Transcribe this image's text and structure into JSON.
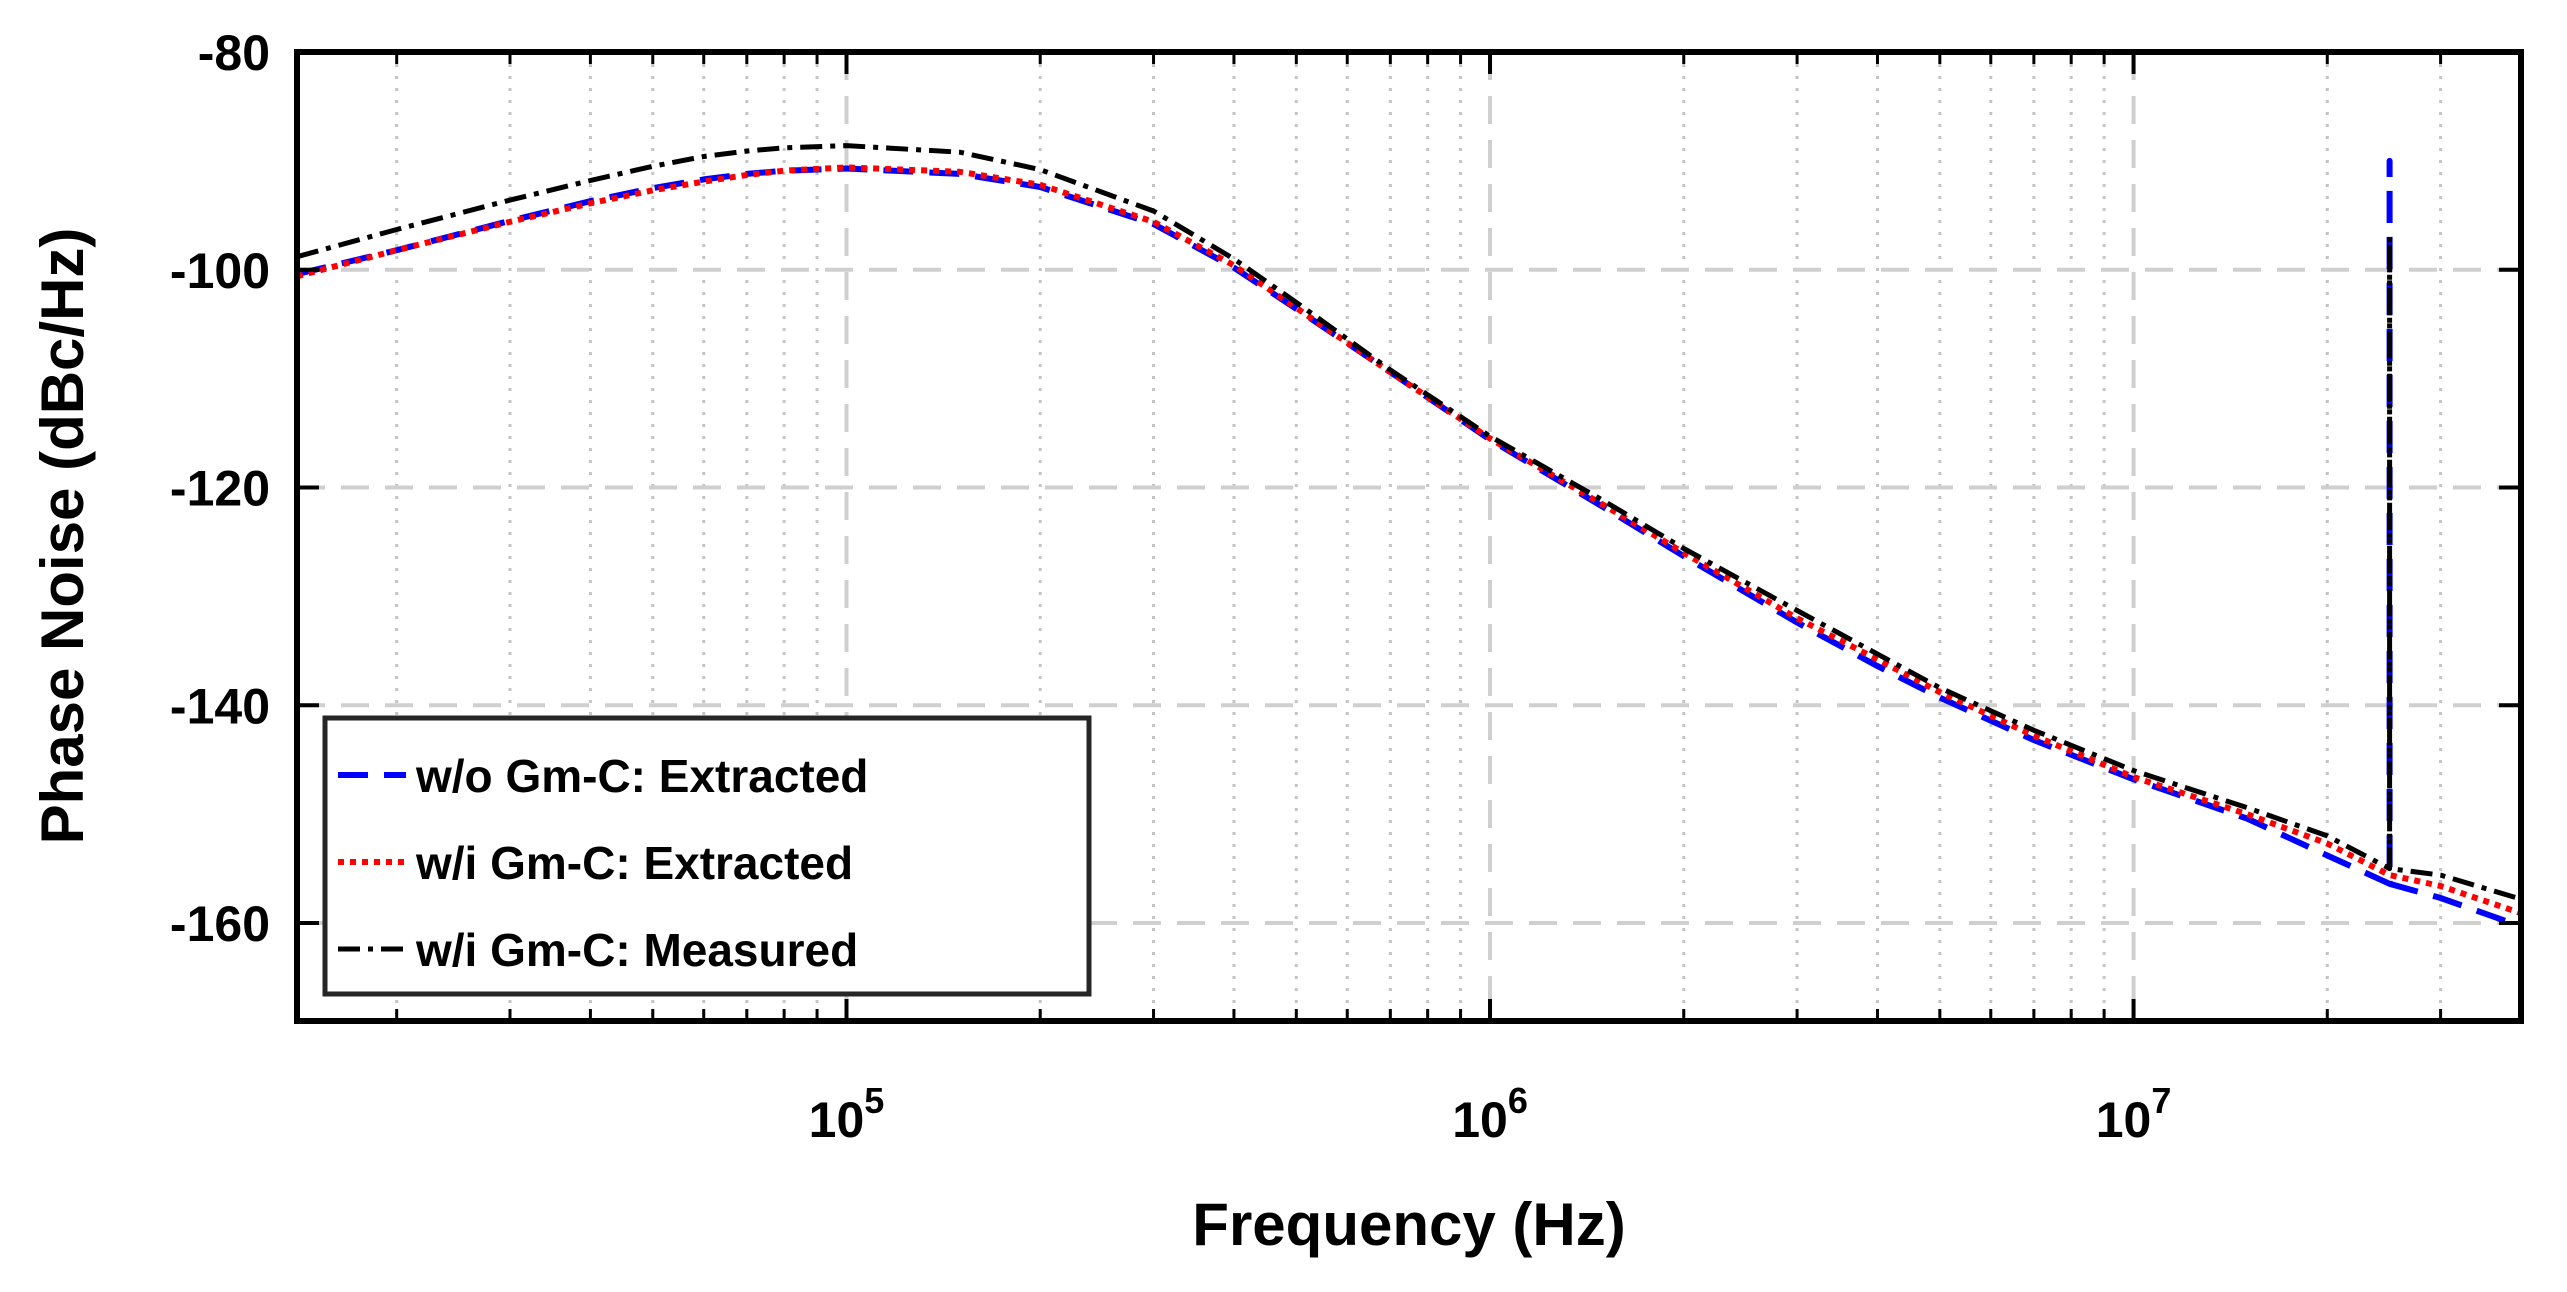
{
  "chart_data": {
    "type": "line",
    "title": "",
    "xlabel": "Frequency (Hz)",
    "ylabel": "Phase Noise (dBc/Hz)",
    "xscale": "log",
    "xlim": [
      14000,
      40000000
    ],
    "ylim": [
      -169,
      -80
    ],
    "grid": true,
    "legend_position": "bottom-left",
    "y_ticks": [
      -80,
      -100,
      -120,
      -140,
      -160
    ],
    "x_major_ticks": [
      {
        "value": 100000,
        "base": "10",
        "exp": "5"
      },
      {
        "value": 1000000,
        "base": "10",
        "exp": "6"
      },
      {
        "value": 10000000,
        "base": "10",
        "exp": "7"
      }
    ],
    "series": [
      {
        "name": "w/o Gm-C: Extracted",
        "color": "#0000ff",
        "style": "dashed",
        "x": [
          14000,
          20000,
          30000,
          40000,
          50000,
          60000,
          70000,
          80000,
          100000,
          150000,
          200000,
          300000,
          400000,
          500000,
          700000,
          1000000,
          1500000,
          2000000,
          3000000,
          4000000,
          5000000,
          7000000,
          10000000,
          15000000,
          20000000,
          25000000,
          25000000,
          25000000,
          25000000,
          30000000,
          40000000
        ],
        "y": [
          -100.4,
          -98.2,
          -95.5,
          -93.7,
          -92.5,
          -91.7,
          -91.2,
          -90.9,
          -90.7,
          -91.2,
          -92.4,
          -95.8,
          -99.8,
          -103.6,
          -109.4,
          -115.6,
          -121.8,
          -126.3,
          -132.4,
          -136.4,
          -139.3,
          -143.2,
          -146.8,
          -150.4,
          -153.8,
          -156.4,
          -96.0,
          -90.0,
          -156.4,
          -157.7,
          -160.3
        ]
      },
      {
        "name": "w/i Gm-C: Extracted",
        "color": "#ff0000",
        "style": "dotted",
        "x": [
          14000,
          20000,
          30000,
          40000,
          50000,
          60000,
          70000,
          80000,
          100000,
          150000,
          200000,
          300000,
          400000,
          500000,
          700000,
          1000000,
          1500000,
          2000000,
          3000000,
          4000000,
          5000000,
          7000000,
          10000000,
          15000000,
          20000000,
          25000000,
          30000000,
          40000000
        ],
        "y": [
          -100.6,
          -98.2,
          -95.6,
          -93.9,
          -92.7,
          -91.9,
          -91.3,
          -90.9,
          -90.6,
          -91.0,
          -92.2,
          -95.6,
          -99.6,
          -103.5,
          -109.4,
          -115.5,
          -121.6,
          -126.0,
          -132.0,
          -135.8,
          -138.8,
          -142.8,
          -146.6,
          -150.0,
          -152.7,
          -155.6,
          -156.6,
          -159.1
        ]
      },
      {
        "name": "w/i Gm-C: Measured",
        "color": "#000000",
        "style": "dashdot",
        "x": [
          14000,
          20000,
          30000,
          40000,
          50000,
          60000,
          70000,
          80000,
          100000,
          150000,
          200000,
          300000,
          400000,
          500000,
          700000,
          1000000,
          1500000,
          2000000,
          3000000,
          4000000,
          5000000,
          7000000,
          10000000,
          15000000,
          20000000,
          25000000,
          25000000,
          25000000,
          30000000,
          40000000
        ],
        "y": [
          -98.8,
          -96.3,
          -93.6,
          -91.8,
          -90.5,
          -89.6,
          -89.1,
          -88.8,
          -88.6,
          -89.2,
          -90.8,
          -94.6,
          -99.0,
          -103.0,
          -109.2,
          -115.3,
          -121.2,
          -125.6,
          -131.3,
          -135.3,
          -138.4,
          -142.3,
          -146.0,
          -149.4,
          -152.0,
          -155.0,
          -97.0,
          -155.0,
          -155.6,
          -157.8
        ]
      }
    ]
  }
}
